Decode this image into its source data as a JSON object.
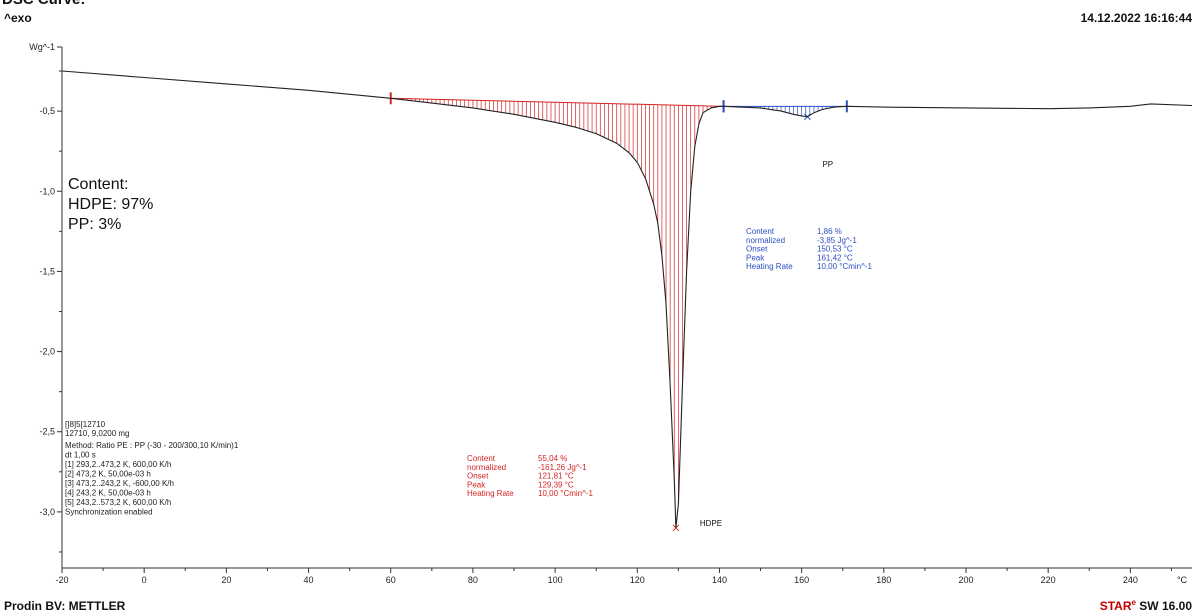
{
  "header": {
    "title": "DSC Curve:",
    "exo_label": "^exo",
    "timestamp": "14.12.2022 16:16:44"
  },
  "footer": {
    "left": "Prodin BV: METTLER",
    "right_brand": "STAR",
    "right_sup": "e",
    "right_version": " SW 16.00"
  },
  "chart_data": {
    "type": "line",
    "ylabel": "Wg^-1",
    "xunit": "°C",
    "xlim": [
      -20,
      255
    ],
    "ylim": [
      -3.35,
      -0.1
    ],
    "xticks": [
      -20,
      0,
      20,
      40,
      60,
      80,
      100,
      120,
      140,
      160,
      180,
      200,
      220,
      240
    ],
    "xtick_labels": [
      "-20",
      "0",
      "20",
      "40",
      "60",
      "80",
      "100",
      "120",
      "140",
      "160",
      "180",
      "200",
      "220",
      "240"
    ],
    "yticks": [
      -0.5,
      -1.0,
      -1.5,
      -2.0,
      -2.5,
      -3.0
    ],
    "ytick_labels": [
      "-0,5",
      "-1,0",
      "-1,5",
      "-2,0",
      "-2,5",
      "-3,0"
    ],
    "curve": {
      "x": [
        -20,
        0,
        20,
        40,
        60,
        70,
        80,
        90,
        100,
        105,
        110,
        115,
        118,
        120,
        122,
        124,
        125,
        126,
        127,
        128,
        129,
        129.39,
        130,
        131,
        132,
        133,
        134,
        135,
        136,
        138,
        140,
        141,
        145,
        150,
        155,
        158,
        160,
        161.42,
        163,
        165,
        168,
        171,
        180,
        200,
        220,
        230,
        240,
        245,
        255
      ],
      "y": [
        -0.25,
        -0.29,
        -0.33,
        -0.37,
        -0.42,
        -0.45,
        -0.48,
        -0.52,
        -0.57,
        -0.6,
        -0.64,
        -0.7,
        -0.76,
        -0.82,
        -0.92,
        -1.08,
        -1.2,
        -1.4,
        -1.7,
        -2.2,
        -2.8,
        -3.1,
        -2.95,
        -2.2,
        -1.5,
        -1.0,
        -0.72,
        -0.58,
        -0.51,
        -0.48,
        -0.47,
        -0.47,
        -0.475,
        -0.48,
        -0.5,
        -0.52,
        -0.53,
        -0.535,
        -0.51,
        -0.49,
        -0.475,
        -0.47,
        -0.475,
        -0.48,
        -0.485,
        -0.48,
        -0.47,
        -0.455,
        -0.465
      ]
    },
    "peaks": [
      {
        "name": "HDPE",
        "start_x": 60,
        "end_x": 141,
        "peak_x": 129.39,
        "color": "#d42424",
        "results": [
          {
            "label": "Content",
            "value": "55,04 %"
          },
          {
            "label": "  normalized",
            "value": "-161,26 Jg^-1"
          },
          {
            "label": "Onset",
            "value": "121,81 °C"
          },
          {
            "label": "Peak",
            "value": "129,39 °C"
          },
          {
            "label": "Heating Rate",
            "value": "10,00 °Cmin^-1"
          }
        ]
      },
      {
        "name": "PP",
        "start_x": 141,
        "end_x": 171,
        "peak_x": 161.42,
        "color": "#2e4fc0",
        "results": [
          {
            "label": "Content",
            "value": "1,86 %"
          },
          {
            "label": "  normalized",
            "value": "-3,85 Jg^-1"
          },
          {
            "label": "Onset",
            "value": "150,53 °C"
          },
          {
            "label": "Peak",
            "value": "161,42 °C"
          },
          {
            "label": "Heating Rate",
            "value": "10,00 °Cmin^-1"
          }
        ]
      }
    ],
    "content_note": [
      "Content:",
      "HDPE: 97%",
      "PP: 3%"
    ],
    "sample_info": [
      "[]8]5[12710",
      "12710, 9,0200 mg"
    ],
    "method_info": [
      "Method: Ratio PE : PP (-30 - 200/300,10 K/min)1",
      "dt 1,00 s",
      "[1] 293,2..473,2 K, 600,00 K/h",
      "[2] 473,2 K, 50,00e-03 h",
      "[3] 473,2..243,2 K, -600,00 K/h",
      "[4] 243,2 K, 50,00e-03 h",
      "[5] 243,2..573,2 K, 600,00 K/h",
      "Synchronization enabled"
    ]
  }
}
